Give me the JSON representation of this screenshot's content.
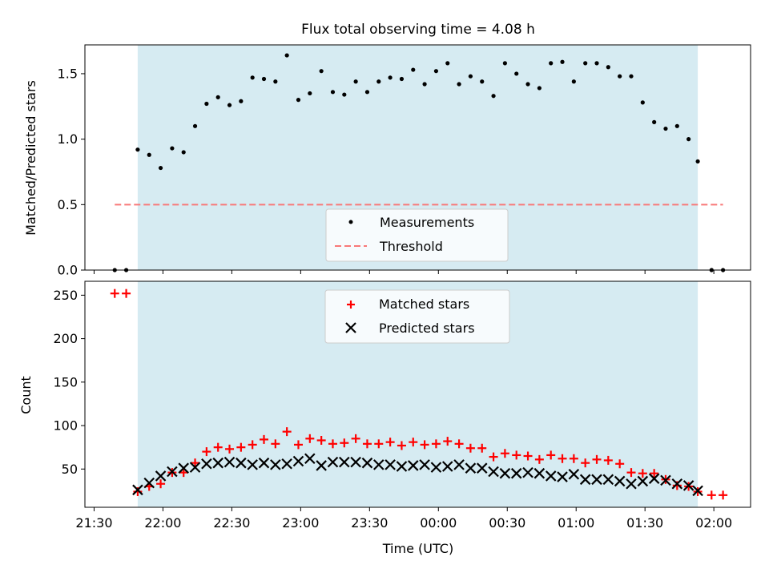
{
  "chart_data": [
    {
      "type": "scatter",
      "title": "Flux total observing time = 4.08 h",
      "xlabel": "",
      "ylabel": "Matched/Predicted stars",
      "ylim": [
        0,
        1.72
      ],
      "yticks": [
        "0.0",
        "0.5",
        "1.0",
        "1.5"
      ],
      "xlim": [
        "21:26",
        "02:16"
      ],
      "shaded_span": [
        "21:49",
        "01:53"
      ],
      "threshold": {
        "name": "Threshold",
        "value": 0.5,
        "x_range": [
          "21:39",
          "02:04"
        ],
        "color": "#f87878"
      },
      "legend": {
        "position": "lower-center",
        "entries": [
          "Measurements",
          "Threshold"
        ]
      },
      "series": [
        {
          "name": "Measurements",
          "color": "#000000",
          "x": [
            "21:39",
            "21:44",
            "21:49",
            "21:54",
            "21:59",
            "22:04",
            "22:09",
            "22:14",
            "22:19",
            "22:24",
            "22:29",
            "22:34",
            "22:39",
            "22:44",
            "22:49",
            "22:54",
            "22:59",
            "23:04",
            "23:09",
            "23:14",
            "23:19",
            "23:24",
            "23:29",
            "23:34",
            "23:39",
            "23:44",
            "23:49",
            "23:54",
            "23:59",
            "00:04",
            "00:09",
            "00:14",
            "00:19",
            "00:24",
            "00:29",
            "00:34",
            "00:39",
            "00:44",
            "00:49",
            "00:54",
            "00:59",
            "01:04",
            "01:09",
            "01:14",
            "01:19",
            "01:24",
            "01:29",
            "01:34",
            "01:39",
            "01:44",
            "01:49",
            "01:53",
            "01:59",
            "02:04"
          ],
          "y": [
            0.0,
            0.0,
            0.92,
            0.88,
            0.78,
            0.93,
            0.9,
            1.1,
            1.27,
            1.32,
            1.26,
            1.29,
            1.47,
            1.46,
            1.44,
            1.64,
            1.3,
            1.35,
            1.52,
            1.36,
            1.34,
            1.44,
            1.36,
            1.44,
            1.47,
            1.46,
            1.53,
            1.42,
            1.52,
            1.58,
            1.42,
            1.48,
            1.44,
            1.33,
            1.58,
            1.5,
            1.42,
            1.39,
            1.58,
            1.59,
            1.44,
            1.58,
            1.58,
            1.55,
            1.48,
            1.48,
            1.28,
            1.13,
            1.08,
            1.1,
            1.0,
            0.83,
            0.0,
            0.0
          ]
        }
      ]
    },
    {
      "type": "scatter",
      "title": "",
      "xlabel": "Time (UTC)",
      "ylabel": "Count",
      "ylim": [
        6,
        266
      ],
      "yticks": [
        "50",
        "100",
        "150",
        "200",
        "250"
      ],
      "xlim": [
        "21:26",
        "02:16"
      ],
      "xticks": [
        "21:30",
        "22:00",
        "22:30",
        "23:00",
        "23:30",
        "00:00",
        "00:30",
        "01:00",
        "01:30",
        "02:00"
      ],
      "shaded_span": [
        "21:49",
        "01:53"
      ],
      "legend": {
        "position": "upper-center",
        "entries": [
          "Matched stars",
          "Predicted stars"
        ]
      },
      "series": [
        {
          "name": "Matched stars",
          "marker": "plus",
          "color": "#ff0000",
          "x": [
            "21:39",
            "21:44",
            "21:49",
            "21:54",
            "21:59",
            "22:04",
            "22:09",
            "22:14",
            "22:19",
            "22:24",
            "22:29",
            "22:34",
            "22:39",
            "22:44",
            "22:49",
            "22:54",
            "22:59",
            "23:04",
            "23:09",
            "23:14",
            "23:19",
            "23:24",
            "23:29",
            "23:34",
            "23:39",
            "23:44",
            "23:49",
            "23:54",
            "23:59",
            "00:04",
            "00:09",
            "00:14",
            "00:19",
            "00:24",
            "00:29",
            "00:34",
            "00:39",
            "00:44",
            "00:49",
            "00:54",
            "00:59",
            "01:04",
            "01:09",
            "01:14",
            "01:19",
            "01:24",
            "01:29",
            "01:34",
            "01:39",
            "01:44",
            "01:49",
            "01:53",
            "01:59",
            "02:04"
          ],
          "y": [
            252,
            252,
            24,
            30,
            33,
            46,
            46,
            57,
            70,
            75,
            73,
            75,
            78,
            84,
            79,
            93,
            78,
            85,
            83,
            79,
            80,
            85,
            79,
            79,
            81,
            77,
            81,
            78,
            79,
            82,
            79,
            74,
            74,
            64,
            68,
            66,
            65,
            61,
            66,
            62,
            62,
            57,
            61,
            60,
            56,
            46,
            45,
            45,
            38,
            31,
            30,
            24,
            20,
            20
          ]
        },
        {
          "name": "Predicted stars",
          "marker": "x",
          "color": "#000000",
          "x": [
            "21:49",
            "21:54",
            "21:59",
            "22:04",
            "22:09",
            "22:14",
            "22:19",
            "22:24",
            "22:29",
            "22:34",
            "22:39",
            "22:44",
            "22:49",
            "22:54",
            "22:59",
            "23:04",
            "23:09",
            "23:14",
            "23:19",
            "23:24",
            "23:29",
            "23:34",
            "23:39",
            "23:44",
            "23:49",
            "23:54",
            "23:59",
            "00:04",
            "00:09",
            "00:14",
            "00:19",
            "00:24",
            "00:29",
            "00:34",
            "00:39",
            "00:44",
            "00:49",
            "00:54",
            "00:59",
            "01:04",
            "01:09",
            "01:14",
            "01:19",
            "01:24",
            "01:29",
            "01:34",
            "01:39",
            "01:44",
            "01:49",
            "01:53"
          ],
          "y": [
            26,
            34,
            42,
            47,
            51,
            52,
            56,
            57,
            58,
            57,
            55,
            57,
            55,
            56,
            59,
            62,
            54,
            58,
            58,
            58,
            57,
            55,
            55,
            53,
            54,
            55,
            52,
            53,
            55,
            51,
            51,
            47,
            45,
            45,
            46,
            45,
            42,
            41,
            44,
            38,
            38,
            38,
            36,
            33,
            36,
            39,
            37,
            33,
            31,
            25
          ]
        }
      ]
    }
  ]
}
